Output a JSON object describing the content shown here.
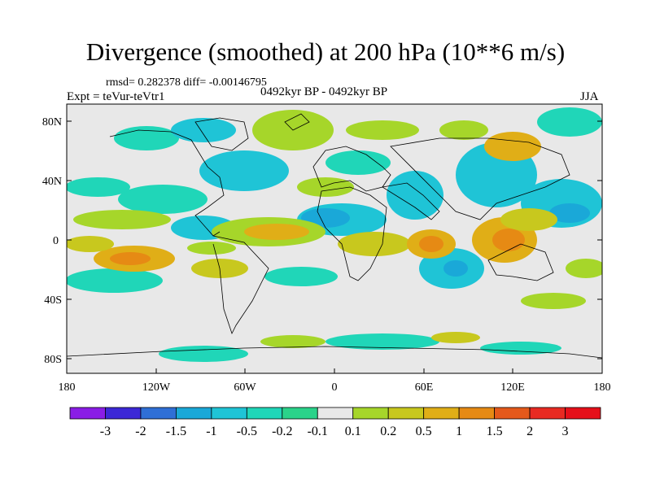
{
  "title": "Divergence (smoothed) at 200 hPa (10**6 m/s)",
  "stats": "rmsd= 0.282378 diff= -0.00146795",
  "experiment": "Expt = teVur-teVtr1",
  "period": "0492kyr BP - 0492kyr BP",
  "season": "JJA",
  "map": {
    "lat_labels": [
      "80N",
      "40N",
      "0",
      "40S",
      "80S"
    ],
    "lon_labels": [
      "180",
      "120W",
      "60W",
      "0",
      "60E",
      "120E",
      "180"
    ],
    "ocean_color": "#e8e8e8"
  },
  "colorbar": {
    "labels": [
      "-3",
      "-2",
      "-1.5",
      "-1",
      "-0.5",
      "-0.2",
      "-0.1",
      "0.1",
      "0.2",
      "0.5",
      "1",
      "1.5",
      "2",
      "3"
    ],
    "colors": [
      "#8a1de6",
      "#3c28d6",
      "#2f6fd6",
      "#1aa8d8",
      "#1fc4d6",
      "#20d6b8",
      "#2ad38a",
      "#e8e8e8",
      "#a6d62a",
      "#c8c81e",
      "#e0ae17",
      "#e68a14",
      "#e4591b",
      "#e82a22",
      "#e6101a"
    ]
  }
}
